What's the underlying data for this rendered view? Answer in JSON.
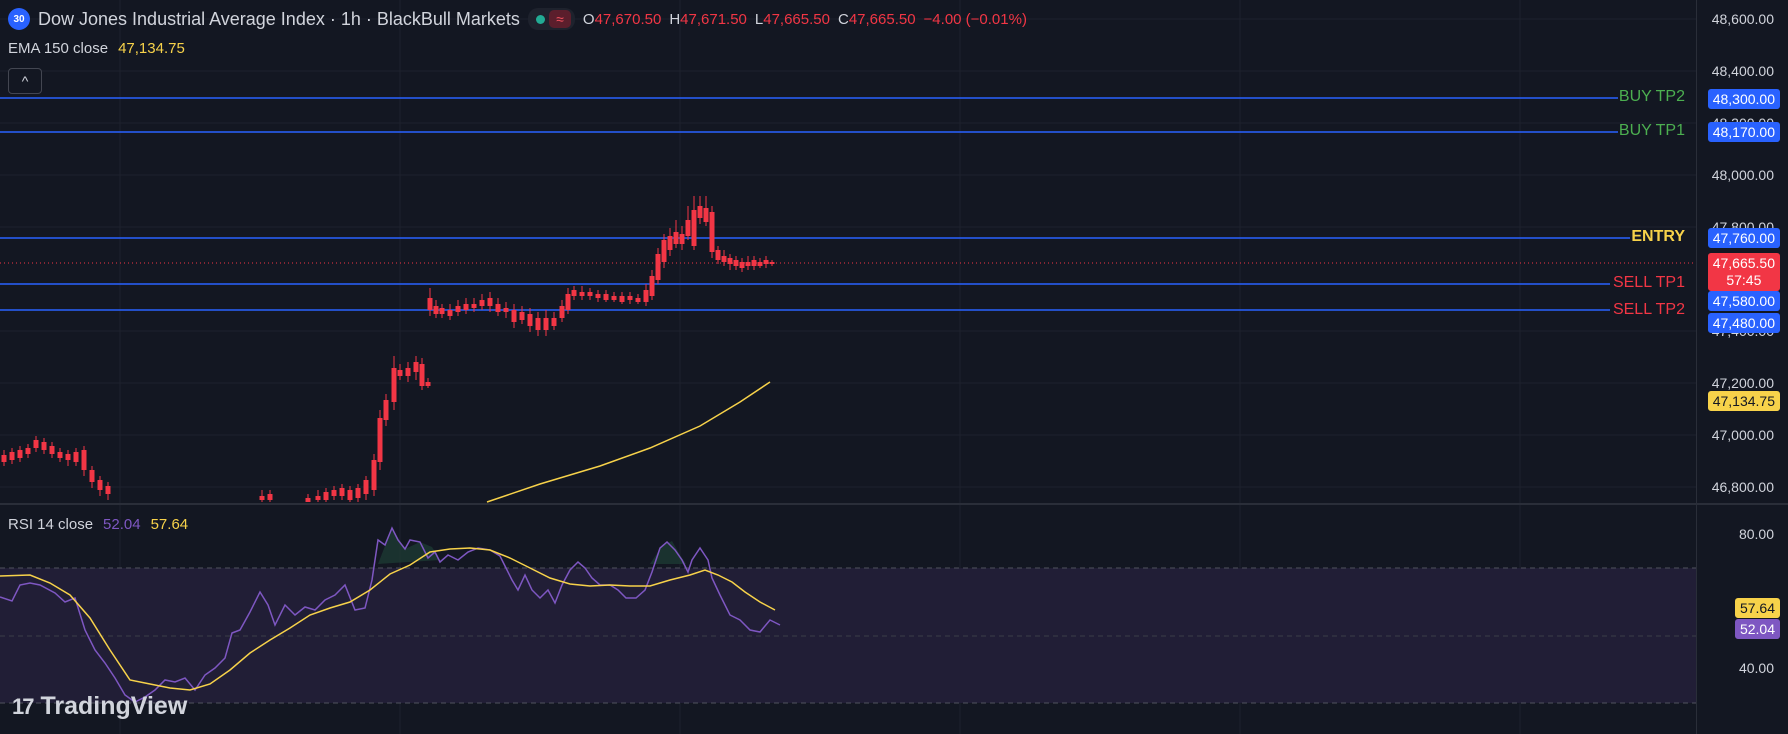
{
  "header": {
    "symbol_badge": "30",
    "title": "Dow Jones Industrial Average Index · 1h · BlackBull Markets",
    "wave_icon": "≈",
    "ohlc": [
      {
        "k": "O",
        "v": "47,670.50"
      },
      {
        "k": "H",
        "v": "47,671.50"
      },
      {
        "k": "L",
        "v": "47,665.50"
      },
      {
        "k": "C",
        "v": "47,665.50"
      }
    ],
    "change": "−4.00 (−0.01%)"
  },
  "ema_legend": {
    "label": "EMA 150 close",
    "value": "47,134.75"
  },
  "collapse_icon": "^",
  "rsi_legend": {
    "label": "RSI 14 close",
    "rsi": "52.04",
    "ma": "57.64"
  },
  "price_axis": [
    "48,600.00",
    "48,400.00",
    "48,200.00",
    "48,000.00",
    "47,800.00",
    "47,400.00",
    "47,200.00",
    "47,000.00",
    "46,800.00"
  ],
  "rsi_axis": [
    "80.00",
    "40.00"
  ],
  "price_labels": {
    "buy_tp2": "48,300.00",
    "buy_tp1": "48,170.00",
    "entry": "47,760.00",
    "last": "47,665.50",
    "countdown": "57:45",
    "sell_tp1": "47,580.00",
    "sell_tp2": "47,480.00",
    "ema": "47,134.75",
    "rsi_ma": "57.64",
    "rsi": "52.04"
  },
  "line_labels": {
    "buy_tp2": "BUY TP2",
    "buy_tp1": "BUY TP1",
    "entry": "ENTRY",
    "sell_tp1": "SELL TP1",
    "sell_tp2": "SELL TP2"
  },
  "branding": {
    "logo_mark": "17",
    "name": "TradingView"
  },
  "colors": {
    "up": "#22ab94",
    "down": "#f23645",
    "ema": "#f7d24a",
    "rsi": "#7e57c2",
    "level": "#2962ff"
  },
  "chart_data": {
    "type": "line",
    "title": "",
    "price_levels": {
      "buy_tp2": 48300,
      "buy_tp1": 48170,
      "entry": 47760,
      "sell_tp1": 47580,
      "sell_tp2": 47480,
      "last": 47665.5
    },
    "ema150": [
      46750,
      46810,
      46880,
      46950,
      47000,
      47040,
      47080,
      47110,
      47134.75
    ],
    "rsi_bands": [
      70,
      50,
      30
    ],
    "rsi_axis_ticks": [
      80,
      40
    ]
  }
}
